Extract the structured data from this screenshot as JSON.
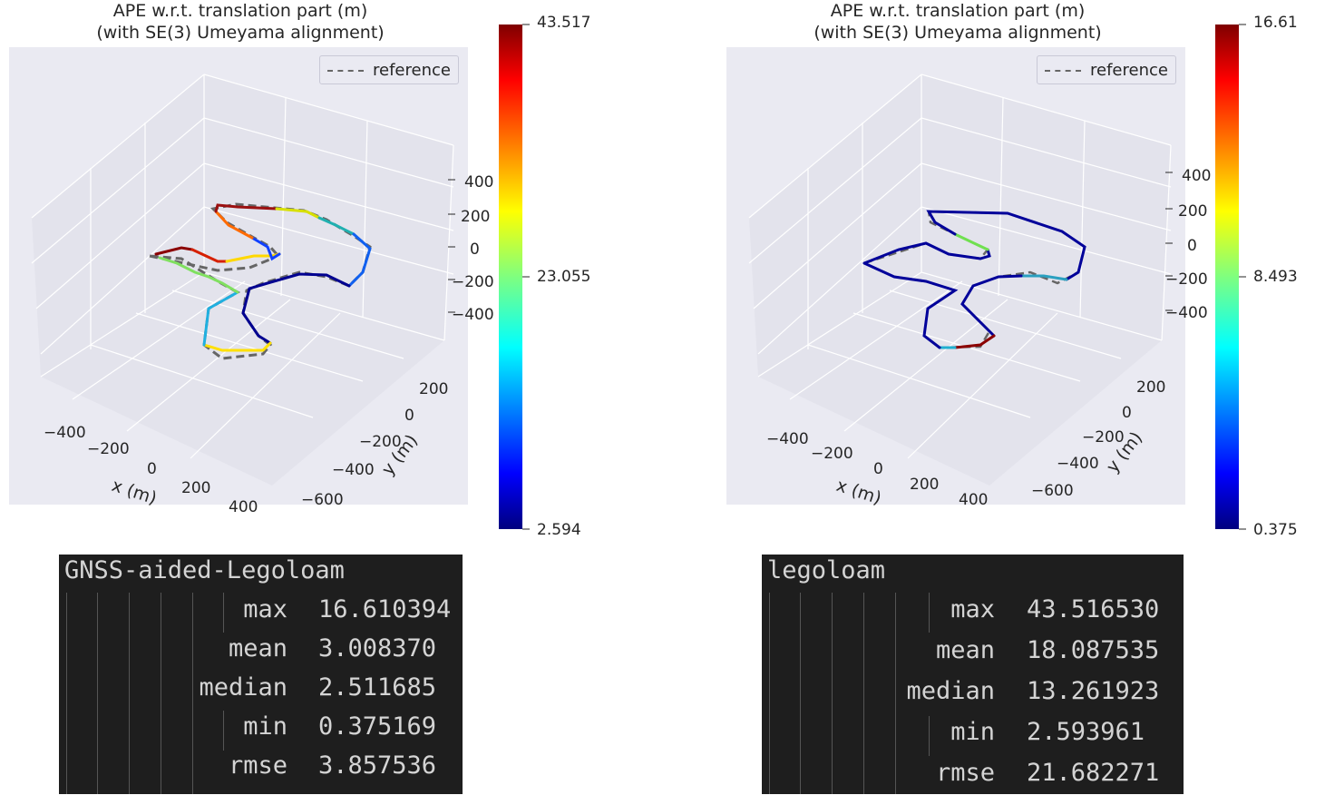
{
  "chart_data": [
    {
      "type": "line",
      "title": "APE w.r.t. translation part (m)",
      "subtitle": "(with SE(3) Umeyama alignment)",
      "legend": [
        "reference"
      ],
      "legend_placement": "top-right",
      "xlabel": "x (m)",
      "ylabel": "y (m)",
      "x_ticks": [
        "−400",
        "−200",
        "0",
        "200",
        "400"
      ],
      "y_ticks": [
        "−600",
        "−400",
        "−200",
        "0",
        "200"
      ],
      "z_ticks": [
        "400",
        "200",
        "0",
        "−200",
        "−400"
      ],
      "colorbar": {
        "min": 2.594,
        "mid": 23.055,
        "max": 43.517,
        "colormap": "jet"
      },
      "grid": true
    },
    {
      "type": "line",
      "title": "APE w.r.t. translation part (m)",
      "subtitle": "(with SE(3) Umeyama alignment)",
      "legend": [
        "reference"
      ],
      "legend_placement": "top-right",
      "xlabel": "x (m)",
      "ylabel": "y (m)",
      "x_ticks": [
        "−400",
        "−200",
        "0",
        "200",
        "400"
      ],
      "y_ticks": [
        "−600",
        "−400",
        "−200",
        "0",
        "200"
      ],
      "z_ticks": [
        "400",
        "200",
        "0",
        "−200",
        "−400"
      ],
      "colorbar": {
        "min": 0.375,
        "mid": 8.493,
        "max": 16.61,
        "colormap": "jet"
      },
      "grid": true
    }
  ],
  "stats": [
    {
      "name": "GNSS-aided-Legoloam",
      "rows": [
        {
          "key": "max",
          "value": "16.610394"
        },
        {
          "key": "mean",
          "value": "3.008370"
        },
        {
          "key": "median",
          "value": "2.511685"
        },
        {
          "key": "min",
          "value": "0.375169"
        },
        {
          "key": "rmse",
          "value": "3.857536"
        }
      ]
    },
    {
      "name": "legoloam",
      "rows": [
        {
          "key": "max",
          "value": "43.516530"
        },
        {
          "key": "mean",
          "value": "18.087535"
        },
        {
          "key": "median",
          "value": "13.261923"
        },
        {
          "key": "min",
          "value": "2.593961"
        },
        {
          "key": "rmse",
          "value": "21.682271"
        }
      ]
    }
  ],
  "colors": {
    "pane": "#eaeaf2",
    "grid": "#ffffff",
    "terminal_bg": "#1e1e1e",
    "terminal_fg": "#d4d4d4",
    "reference": "#666666"
  }
}
